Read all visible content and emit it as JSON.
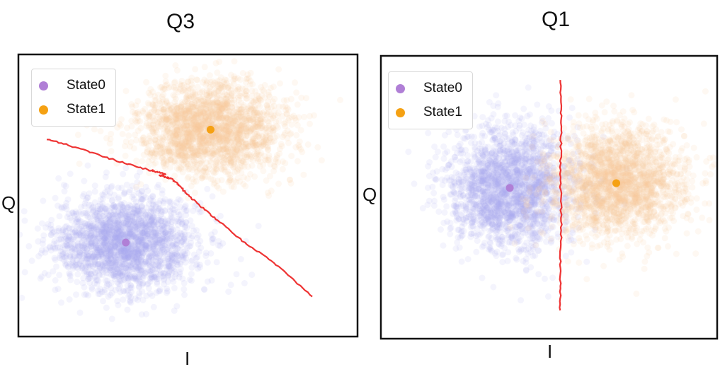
{
  "chart_data": [
    {
      "type": "scatter",
      "title": "Q3",
      "xlabel": "I",
      "ylabel": "Q",
      "xlim": [
        -3,
        3
      ],
      "ylim": [
        -3,
        3
      ],
      "grid": false,
      "legend_placement": "top-left",
      "series": [
        {
          "name": "State0",
          "color": "#b07fd6",
          "cloud_color": "#aaaaf0",
          "center": [
            -1.1,
            -1.0
          ],
          "spread": [
            0.62,
            0.5
          ],
          "points": 2200
        },
        {
          "name": "State1",
          "color": "#f5a113",
          "cloud_color": "#fbc89a",
          "center": [
            0.4,
            1.4
          ],
          "spread": [
            0.65,
            0.5
          ],
          "points": 2200
        }
      ],
      "decision_boundary": {
        "color": "#ee3333",
        "points": [
          [
            -2.5,
            1.2
          ],
          [
            -1.9,
            1.0
          ],
          [
            -1.3,
            0.75
          ],
          [
            -0.7,
            0.55
          ],
          [
            -0.4,
            0.46
          ],
          [
            -0.5,
            0.42
          ],
          [
            -0.3,
            0.36
          ],
          [
            -0.15,
            0.2
          ],
          [
            0.1,
            -0.1
          ],
          [
            0.5,
            -0.5
          ],
          [
            1.0,
            -1.0
          ],
          [
            1.6,
            -1.5
          ],
          [
            2.2,
            -2.15
          ]
        ]
      }
    },
    {
      "type": "scatter",
      "title": "Q1",
      "xlabel": "I",
      "ylabel": "Q",
      "xlim": [
        -3,
        3
      ],
      "ylim": [
        -3,
        3
      ],
      "grid": false,
      "legend_placement": "top-left",
      "series": [
        {
          "name": "State0",
          "color": "#b07fd6",
          "cloud_color": "#aaaaf0",
          "center": [
            -0.7,
            0.2
          ],
          "spread": [
            0.55,
            0.65
          ],
          "points": 2200
        },
        {
          "name": "State1",
          "color": "#f5a113",
          "cloud_color": "#fbc89a",
          "center": [
            1.2,
            0.3
          ],
          "spread": [
            0.6,
            0.6
          ],
          "points": 2200
        }
      ],
      "decision_boundary": {
        "color": "#ee3333",
        "points": [
          [
            0.2,
            2.5
          ],
          [
            0.22,
            1.5
          ],
          [
            0.2,
            0.5
          ],
          [
            0.22,
            -0.5
          ],
          [
            0.2,
            -1.5
          ],
          [
            0.2,
            -2.4
          ]
        ]
      }
    }
  ]
}
